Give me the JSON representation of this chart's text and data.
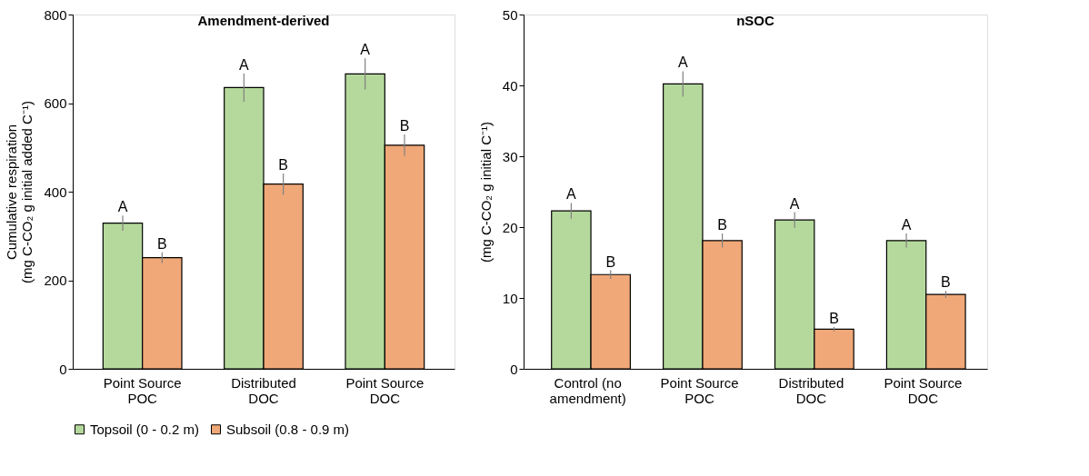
{
  "chart_data": [
    {
      "type": "bar",
      "title": "Amendment-derived",
      "ylabel": "Cumulative respiration\n(mg C-CO₂ g initial added C⁻¹)",
      "categories": [
        "Point Source\nPOC",
        "Distributed\nDOC",
        "Point Source\nDOC"
      ],
      "ylim": [
        0,
        800
      ],
      "yticks": [
        0,
        200,
        400,
        600,
        800
      ],
      "grid": false,
      "legend": "bottom",
      "series": [
        {
          "name": "Topsoil (0 - 0.2 m)",
          "color": "#b5d99c",
          "values": [
            329,
            635,
            666
          ],
          "errors": [
            17,
            32,
            35
          ],
          "value_labels": [
            "A",
            "A",
            "A"
          ]
        },
        {
          "name": "Subsoil (0.8 - 0.9 m)",
          "color": "#f0a878",
          "values": [
            251,
            417,
            505
          ],
          "errors": [
            12,
            24,
            24
          ],
          "value_labels": [
            "B",
            "B",
            "B"
          ]
        }
      ]
    },
    {
      "type": "bar",
      "title": "nSOC",
      "ylabel": "(mg C-CO₂ g initial C⁻¹)",
      "categories": [
        "Control (no\namendment)",
        "Point Source\nPOC",
        "Distributed\nDOC",
        "Point Source\nDOC"
      ],
      "ylim": [
        0,
        50
      ],
      "yticks": [
        0,
        10,
        20,
        30,
        40,
        50
      ],
      "grid": false,
      "legend": "bottom",
      "series": [
        {
          "name": "Topsoil (0 - 0.2 m)",
          "color": "#b5d99c",
          "values": [
            22.3,
            40.2,
            21.0,
            18.1
          ],
          "errors": [
            1.1,
            1.8,
            1.1,
            1.0
          ],
          "value_labels": [
            "A",
            "A",
            "A",
            "A"
          ]
        },
        {
          "name": "Subsoil (0.8 - 0.9 m)",
          "color": "#f0a878",
          "values": [
            13.3,
            18.1,
            5.6,
            10.5
          ],
          "errors": [
            0.6,
            1.0,
            0.3,
            0.5
          ],
          "value_labels": [
            "B",
            "B",
            "B",
            "B"
          ]
        }
      ]
    }
  ]
}
